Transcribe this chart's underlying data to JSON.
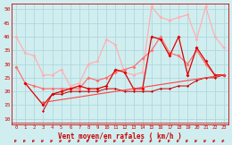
{
  "xlabel": "Vent moyen/en rafales ( km/h )",
  "bg_color": "#d0eef0",
  "grid_color": "#b0d8dc",
  "xlim_min": -0.5,
  "xlim_max": 23.5,
  "ylim_min": 8,
  "ylim_max": 52,
  "yticks": [
    10,
    15,
    20,
    25,
    30,
    35,
    40,
    45,
    50
  ],
  "xticks": [
    0,
    1,
    2,
    3,
    4,
    5,
    6,
    7,
    8,
    9,
    10,
    11,
    12,
    13,
    14,
    15,
    16,
    17,
    18,
    19,
    20,
    21,
    22,
    23
  ],
  "series": [
    {
      "x": [
        0,
        1,
        2,
        3,
        4,
        5,
        6,
        7,
        8,
        9,
        10,
        11,
        12,
        13,
        14,
        15,
        16,
        17,
        18,
        19,
        20,
        21,
        22,
        23
      ],
      "y": [
        40,
        34,
        33,
        26,
        26,
        28,
        22,
        23,
        30,
        31,
        39,
        37,
        27,
        26,
        27,
        51,
        47,
        46,
        47,
        48,
        39,
        51,
        40,
        36
      ],
      "color": "#ffb0b0",
      "lw": 0.9,
      "ms": 2.0
    },
    {
      "x": [
        0,
        1,
        2,
        3,
        4,
        5,
        6,
        7,
        8,
        9,
        10,
        11,
        12,
        13,
        14,
        15,
        16,
        17,
        18,
        19,
        20,
        21,
        22,
        23
      ],
      "y": [
        29,
        23,
        22,
        21,
        21,
        21,
        21,
        21,
        25,
        24,
        25,
        27,
        28,
        29,
        32,
        35,
        40,
        34,
        33,
        30,
        35,
        30,
        26,
        26
      ],
      "color": "#ff7070",
      "lw": 0.9,
      "ms": 2.0
    },
    {
      "x": [
        1,
        3,
        4,
        5,
        6,
        7,
        8,
        9,
        10,
        11,
        12,
        13,
        14,
        15,
        16,
        17,
        18,
        19,
        20,
        21,
        22,
        23
      ],
      "y": [
        23,
        15,
        19,
        20,
        21,
        22,
        21,
        21,
        22,
        28,
        27,
        21,
        21,
        40,
        39,
        33,
        40,
        26,
        36,
        31,
        26,
        26
      ],
      "color": "#dd0000",
      "lw": 0.9,
      "ms": 2.0
    },
    {
      "x": [
        3,
        4,
        5,
        6,
        7,
        8,
        9,
        10,
        11,
        12,
        13,
        14,
        15,
        16,
        17,
        18,
        19,
        20,
        21,
        22,
        23
      ],
      "y": [
        13,
        19,
        19,
        20,
        20,
        20,
        20,
        21,
        21,
        20,
        20,
        20,
        20,
        21,
        21,
        22,
        22,
        24,
        25,
        25,
        26
      ],
      "color": "#cc0000",
      "lw": 0.7,
      "ms": 1.5
    },
    {
      "x": [
        3,
        23
      ],
      "y": [
        16,
        26
      ],
      "color": "#ff4444",
      "lw": 0.8,
      "ms": 1.5
    }
  ]
}
